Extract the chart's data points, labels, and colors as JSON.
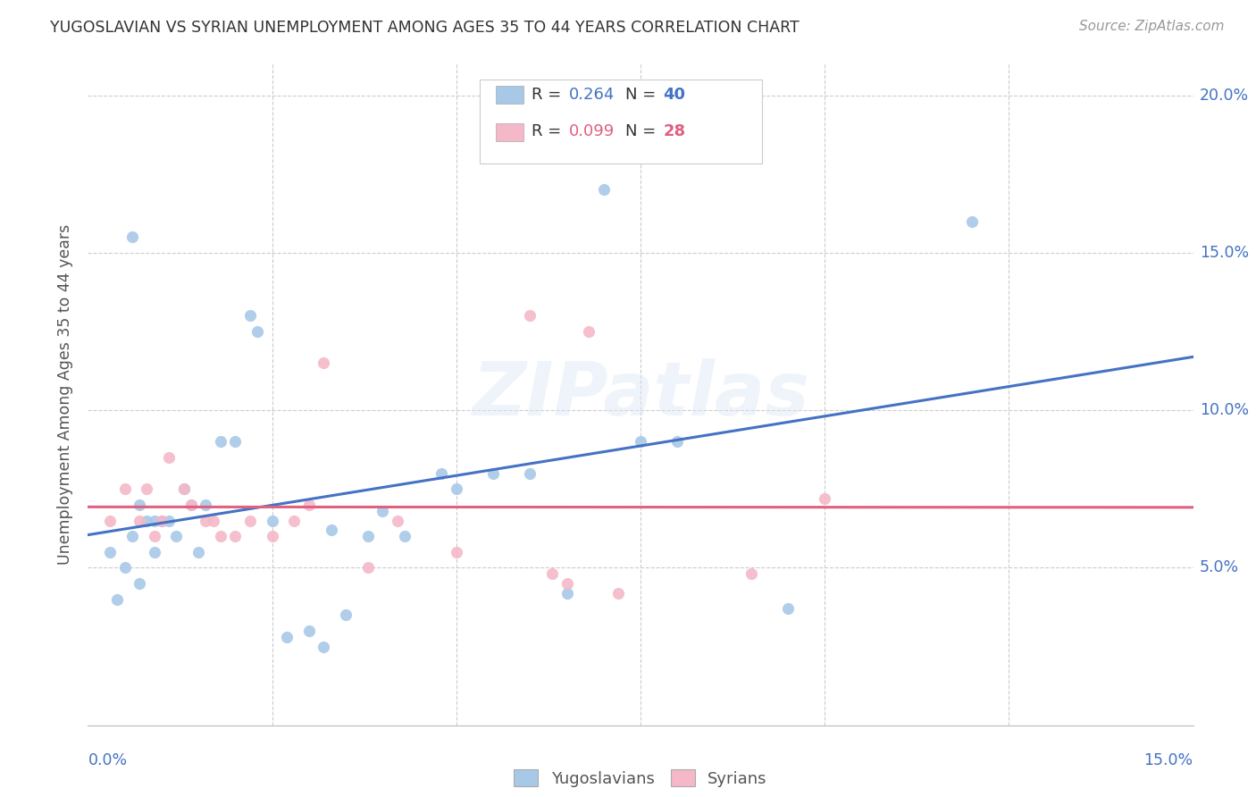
{
  "title": "YUGOSLAVIAN VS SYRIAN UNEMPLOYMENT AMONG AGES 35 TO 44 YEARS CORRELATION CHART",
  "source": "Source: ZipAtlas.com",
  "ylabel": "Unemployment Among Ages 35 to 44 years",
  "xlim": [
    0.0,
    0.15
  ],
  "ylim": [
    0.0,
    0.21
  ],
  "yticks": [
    0.05,
    0.1,
    0.15,
    0.2
  ],
  "ytick_labels": [
    "5.0%",
    "10.0%",
    "15.0%",
    "20.0%"
  ],
  "xtick_start": "0.0%",
  "xtick_end": "15.0%",
  "blue_scatter_color": "#a8c8e8",
  "pink_scatter_color": "#f4b8c8",
  "blue_line_color": "#4472c4",
  "pink_line_color": "#e06080",
  "axis_label_color": "#4472c4",
  "grid_color": "#cccccc",
  "background_color": "#ffffff",
  "title_color": "#333333",
  "source_color": "#999999",
  "legend1_R": "0.264",
  "legend1_N": "40",
  "legend2_R": "0.099",
  "legend2_N": "28",
  "watermark": "ZIPatlas",
  "yug_x": [
    0.003,
    0.004,
    0.005,
    0.006,
    0.007,
    0.007,
    0.008,
    0.009,
    0.009,
    0.01,
    0.011,
    0.012,
    0.013,
    0.014,
    0.015,
    0.016,
    0.018,
    0.02,
    0.022,
    0.023,
    0.025,
    0.027,
    0.03,
    0.032,
    0.033,
    0.035,
    0.038,
    0.04,
    0.043,
    0.048,
    0.05,
    0.055,
    0.06,
    0.065,
    0.07,
    0.075,
    0.08,
    0.095,
    0.12,
    0.006
  ],
  "yug_y": [
    0.055,
    0.04,
    0.05,
    0.06,
    0.045,
    0.07,
    0.065,
    0.055,
    0.065,
    0.065,
    0.065,
    0.06,
    0.075,
    0.07,
    0.055,
    0.07,
    0.09,
    0.09,
    0.13,
    0.125,
    0.065,
    0.028,
    0.03,
    0.025,
    0.062,
    0.035,
    0.06,
    0.068,
    0.06,
    0.08,
    0.075,
    0.08,
    0.08,
    0.042,
    0.17,
    0.09,
    0.09,
    0.037,
    0.16,
    0.155
  ],
  "syr_x": [
    0.003,
    0.005,
    0.007,
    0.008,
    0.009,
    0.01,
    0.011,
    0.013,
    0.014,
    0.016,
    0.017,
    0.018,
    0.02,
    0.022,
    0.025,
    0.028,
    0.03,
    0.032,
    0.038,
    0.042,
    0.05,
    0.06,
    0.063,
    0.065,
    0.068,
    0.072,
    0.09,
    0.1
  ],
  "syr_y": [
    0.065,
    0.075,
    0.065,
    0.075,
    0.06,
    0.065,
    0.085,
    0.075,
    0.07,
    0.065,
    0.065,
    0.06,
    0.06,
    0.065,
    0.06,
    0.065,
    0.07,
    0.115,
    0.05,
    0.065,
    0.055,
    0.13,
    0.048,
    0.045,
    0.125,
    0.042,
    0.048,
    0.072
  ]
}
